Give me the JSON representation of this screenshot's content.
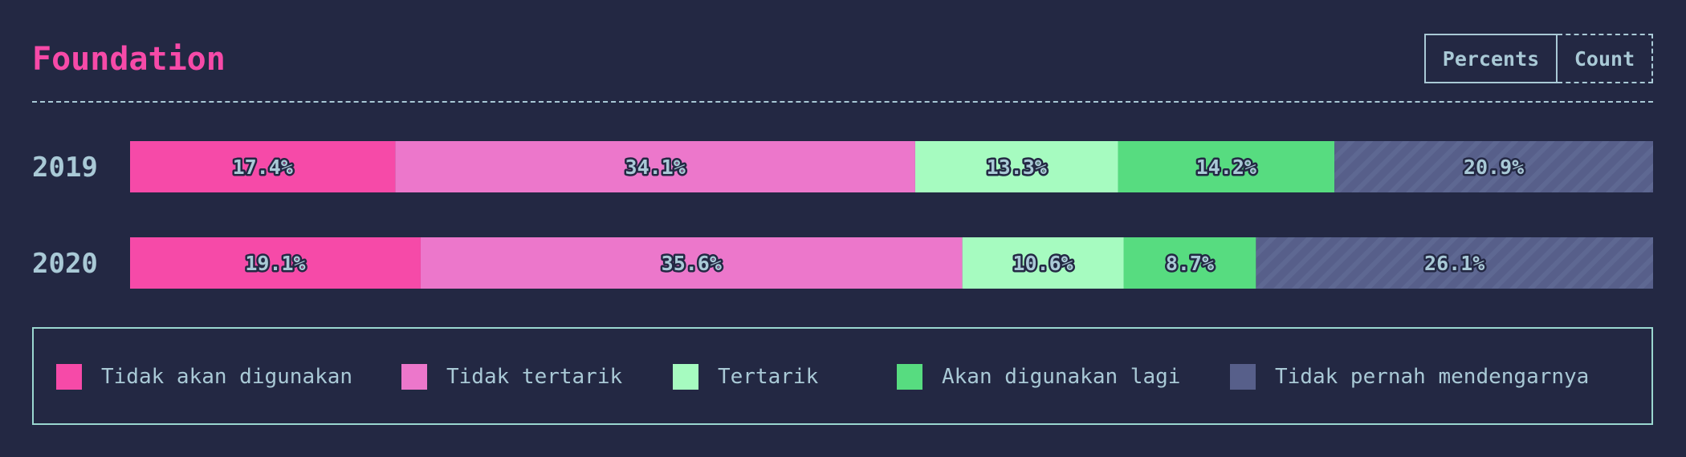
{
  "header": {
    "title": "Foundation",
    "toggle": {
      "percents_label": "Percents",
      "count_label": "Count",
      "active": "percents"
    }
  },
  "chart_data": {
    "type": "bar",
    "orientation": "horizontal",
    "stacked": true,
    "categories": [
      "2019",
      "2020"
    ],
    "series": [
      {
        "name": "Tidak akan digunakan",
        "values": [
          17.4,
          19.1
        ],
        "labels": [
          "17.4%",
          "19.1%"
        ],
        "color": "#f64aa8"
      },
      {
        "name": "Tidak tertarik",
        "values": [
          34.1,
          35.6
        ],
        "labels": [
          "34.1%",
          "35.6%"
        ],
        "color": "#ec77cb"
      },
      {
        "name": "Tertarik",
        "values": [
          13.3,
          10.6
        ],
        "labels": [
          "13.3%",
          "10.6%"
        ],
        "color": "#a6fbc0"
      },
      {
        "name": "Akan digunakan lagi",
        "values": [
          14.2,
          8.7
        ],
        "labels": [
          "14.2%",
          "8.7%"
        ],
        "color": "#57dc80"
      },
      {
        "name": "Tidak pernah mendengarnya",
        "values": [
          20.9,
          26.1
        ],
        "labels": [
          "20.9%",
          "26.1%"
        ],
        "color": "#575f8a",
        "pattern": "diagonal-hatch"
      }
    ],
    "xlim": [
      0,
      100
    ],
    "legend": "bottom"
  },
  "colors": {
    "title": "#f64aa8",
    "background": "#232843",
    "text": "#a9c9d6",
    "legend_border": "#9ad7d0"
  }
}
